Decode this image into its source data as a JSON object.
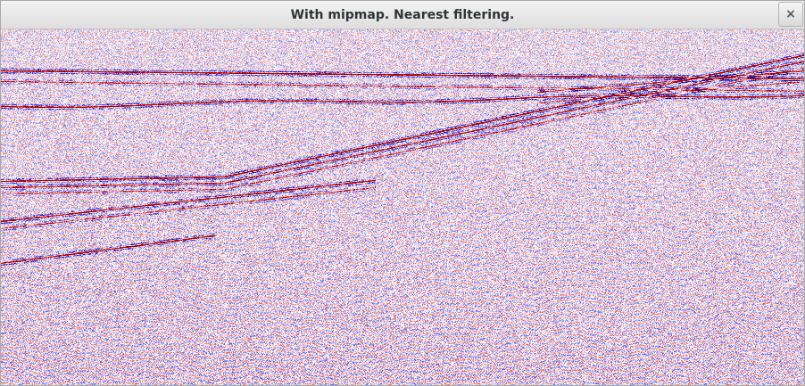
{
  "window": {
    "title": "With mipmap. Nearest filtering."
  },
  "controls": {
    "close_icon": "close-icon",
    "close_glyph": "×"
  },
  "viewport": {
    "content": "seismic-section-image",
    "colormap": {
      "positive": "#cc0000",
      "zero": "#ffffff",
      "negative": "#0000cc"
    }
  }
}
